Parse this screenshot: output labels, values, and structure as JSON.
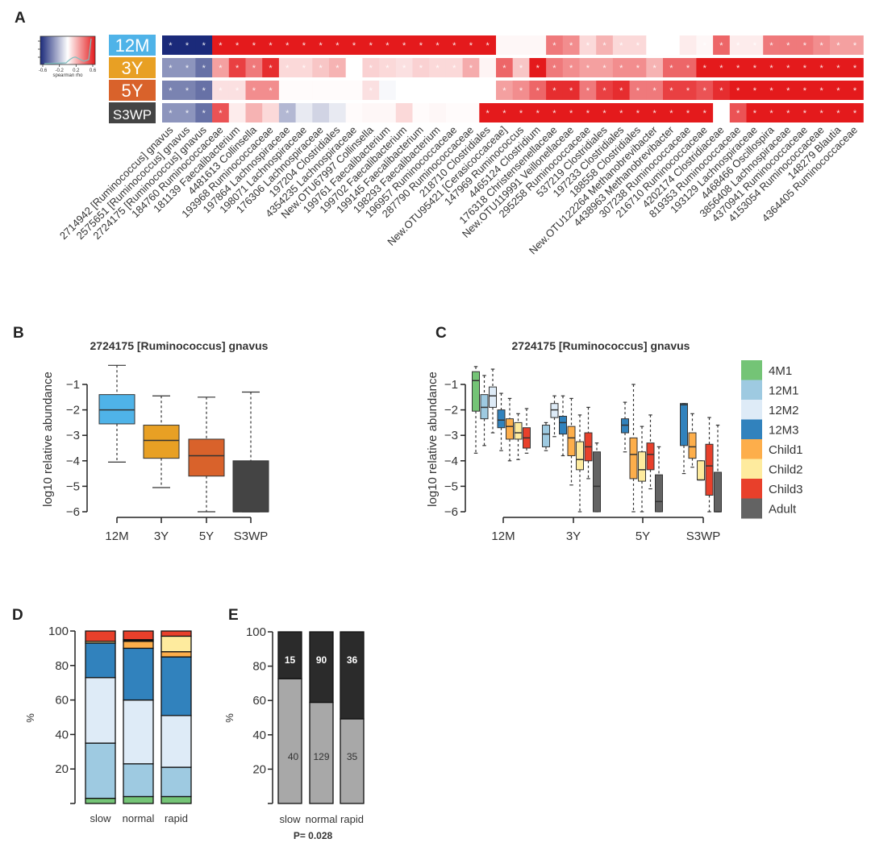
{
  "panels": {
    "A": "A",
    "B": "B",
    "C": "C",
    "D": "D",
    "E": "E"
  },
  "chart_data": [
    {
      "id": "A",
      "type": "heatmap",
      "colorbar": {
        "label": "spearman rho",
        "ticks": [
          "-0.6",
          "-0.2",
          "0.2",
          "0.6"
        ],
        "range": [
          -0.6,
          0.6
        ],
        "low_color": "#1b2a7a",
        "mid_color": "#ffffff",
        "high_color": "#e41a1c"
      },
      "rows": [
        {
          "label": "12M",
          "color": "#4fb3e8"
        },
        {
          "label": "3Y",
          "color": "#e8a024"
        },
        {
          "label": "5Y",
          "color": "#d9622b"
        },
        {
          "label": "S3WP",
          "color": "#444444"
        }
      ],
      "columns": [
        "2714942_[Ruminococcus]_gnavus",
        "2575651_[Ruminococcus]_gnavus",
        "2724175_[Ruminococcus]_gnavus",
        "184760_Ruminococcaceae",
        "181139_Faecalibacterium",
        "4481613_Collinsella",
        "193968_Ruminococcaceae",
        "197864_Lachnospiraceae",
        "198071_Lachnospiraceae",
        "176306_Lachnospiraceae",
        "197204_Clostridiales",
        "4354235_Lachnospiraceae",
        "New.OTU67997_Collinsella",
        "199761_Faecalibacterium",
        "199702_Faecalibacterium",
        "199145_Faecalibacterium",
        "198293_Faecalibacterium",
        "196957_Ruminococcaceae",
        "287790_Ruminococcaceae",
        "218710_Clostridiales",
        "New.OTU95421_[Cerasicoccaceae]",
        "147969_Ruminococcus",
        "4465124_Clostridium",
        "176318_Christensenellaceae",
        "New.OTU119991_Veillonellaceae",
        "295258_Ruminococcaceae",
        "537219_Clostridiales",
        "197233_Clostridiales",
        "188558_Clostridiales",
        "New.OTU122264_Methanobrevibacter",
        "4438963_Methanobrevibacter",
        "307238_Ruminococcaceae",
        "216710_Ruminococcaceae",
        "4202174_Clostridiaceae",
        "819353_Ruminococcaceae",
        "193129_Lachnospiraceae",
        "4468466_Oscillospira",
        "3856408_Lachnospiraceae",
        "4370941_Ruminococcaceae",
        "4153054_Ruminococcaceae",
        "148279_Blautia",
        "4364405_Ruminococcaceae"
      ],
      "values": [
        [
          -0.6,
          -0.6,
          -0.6,
          0.6,
          0.6,
          0.6,
          0.6,
          0.6,
          0.6,
          0.6,
          0.6,
          0.6,
          0.6,
          0.6,
          0.6,
          0.6,
          0.6,
          0.6,
          0.6,
          0.6,
          0.02,
          0.02,
          0.02,
          0.35,
          0.3,
          0.1,
          0.2,
          0.1,
          0.1,
          0,
          0,
          0.05,
          0.02,
          0.4,
          0.05,
          0.05,
          0.35,
          0.35,
          0.35,
          0.3,
          0.25,
          0.25
        ],
        [
          -0.3,
          -0.3,
          -0.4,
          0.25,
          0.5,
          0.35,
          0.55,
          0.1,
          0.1,
          0.15,
          0.2,
          0,
          0.12,
          0.1,
          0.08,
          0.12,
          0.1,
          0.1,
          0.22,
          0.03,
          0.4,
          0.15,
          0.6,
          0.35,
          0.3,
          0.25,
          0.25,
          0.3,
          0.3,
          0.2,
          0.4,
          0.4,
          0.6,
          0.6,
          0.6,
          0.6,
          0.6,
          0.6,
          0.6,
          0.6,
          0.6,
          0.6
        ],
        [
          -0.35,
          -0.35,
          -0.4,
          0.08,
          0.08,
          0.3,
          0.3,
          0.01,
          0.01,
          0.01,
          0.01,
          0.01,
          0.08,
          -0.02,
          0,
          0,
          0,
          0,
          0,
          0,
          0.25,
          0.3,
          0.4,
          0.55,
          0.55,
          0.35,
          0.5,
          0.55,
          0.35,
          0.35,
          0.5,
          0.5,
          0.45,
          0.55,
          0.6,
          0.6,
          0.6,
          0.6,
          0.6,
          0.6,
          0.6,
          0.6
        ],
        [
          -0.3,
          -0.3,
          -0.4,
          0.45,
          0.05,
          0.2,
          0.1,
          -0.2,
          -0.06,
          -0.12,
          -0.06,
          0.01,
          0.02,
          0.02,
          0.1,
          0.01,
          0.02,
          0.01,
          0.01,
          0.6,
          0.6,
          0.6,
          0.6,
          0.6,
          0.6,
          0.6,
          0.6,
          0.6,
          0.6,
          0.6,
          0.6,
          0.6,
          0.6,
          0,
          0.45,
          0.6,
          0.6,
          0.6,
          0.6,
          0.6,
          0.6,
          0.6
        ]
      ],
      "significant": [
        [
          1,
          1,
          1,
          1,
          1,
          1,
          1,
          1,
          1,
          1,
          1,
          1,
          1,
          1,
          1,
          1,
          1,
          1,
          1,
          1,
          0,
          0,
          0,
          1,
          1,
          1,
          1,
          1,
          1,
          0,
          0,
          0,
          1,
          1,
          1,
          1,
          1,
          1,
          1,
          1,
          1,
          1
        ],
        [
          1,
          1,
          1,
          1,
          1,
          1,
          1,
          1,
          1,
          1,
          1,
          0,
          1,
          1,
          1,
          1,
          1,
          1,
          1,
          0,
          1,
          1,
          1,
          1,
          1,
          1,
          1,
          1,
          1,
          1,
          1,
          1,
          1,
          1,
          1,
          1,
          1,
          1,
          1,
          1,
          1,
          1
        ],
        [
          1,
          1,
          1,
          1,
          1,
          1,
          1,
          0,
          0,
          0,
          0,
          0,
          1,
          0,
          0,
          0,
          0,
          0,
          0,
          0,
          1,
          1,
          1,
          1,
          1,
          1,
          1,
          1,
          1,
          1,
          1,
          1,
          1,
          1,
          1,
          1,
          1,
          1,
          1,
          1,
          1,
          1
        ],
        [
          1,
          1,
          1,
          1,
          0,
          0,
          0,
          1,
          0,
          0,
          0,
          0,
          0,
          0,
          0,
          0,
          0,
          0,
          0,
          1,
          1,
          1,
          1,
          1,
          1,
          1,
          1,
          1,
          1,
          1,
          1,
          1,
          1,
          0,
          1,
          1,
          1,
          1,
          1,
          1,
          1,
          1
        ]
      ]
    },
    {
      "id": "B",
      "type": "box",
      "title": "2724175 [Ruminococcus] gnavus",
      "xlabel": "",
      "ylabel": "log10 relative abundance",
      "ylim": [
        -6,
        -1
      ],
      "yticks": [
        "-1",
        "-2",
        "-3",
        "-4",
        "-5",
        "-6"
      ],
      "categories": [
        "12M",
        "3Y",
        "5Y",
        "S3WP"
      ],
      "colors": [
        "#4fb3e8",
        "#e8a024",
        "#d9622b",
        "#444444"
      ],
      "boxes": [
        {
          "whisker_low": -4.05,
          "q1": -2.55,
          "median": -2.0,
          "q3": -1.4,
          "whisker_high": -0.25
        },
        {
          "whisker_low": -5.05,
          "q1": -3.9,
          "median": -3.2,
          "q3": -2.6,
          "whisker_high": -1.45
        },
        {
          "whisker_low": -6.0,
          "q1": -4.6,
          "median": -3.8,
          "q3": -3.15,
          "whisker_high": -1.5
        },
        {
          "whisker_low": -6.0,
          "q1": -6.0,
          "median": -6.0,
          "q3": -4.0,
          "whisker_high": -1.3
        }
      ]
    },
    {
      "id": "C",
      "type": "box",
      "title": "2724175 [Ruminococcus] gnavus",
      "ylabel": "log10 relative abundance",
      "ylim": [
        -6,
        -1
      ],
      "yticks": [
        "-1",
        "-2",
        "-3",
        "-4",
        "-5",
        "-6"
      ],
      "categories": [
        "12M",
        "3Y",
        "5Y",
        "S3WP"
      ],
      "legend": [
        {
          "label": "4M1",
          "color": "#74c476"
        },
        {
          "label": "12M1",
          "color": "#9ecae1"
        },
        {
          "label": "12M2",
          "color": "#deebf7"
        },
        {
          "label": "12M3",
          "color": "#3182bd"
        },
        {
          "label": "Child1",
          "color": "#fdae4b"
        },
        {
          "label": "Child2",
          "color": "#feeb9e"
        },
        {
          "label": "Child3",
          "color": "#e8402b"
        },
        {
          "label": "Adult",
          "color": "#636363"
        }
      ],
      "groups": [
        {
          "category": "12M",
          "boxes": [
            {
              "series": "4M1",
              "whisker_low": -3.7,
              "q1": -2.05,
              "median": -0.85,
              "q3": -0.5,
              "whisker_high": -0.3
            },
            {
              "series": "12M1",
              "whisker_low": -3.4,
              "q1": -2.35,
              "median": -1.9,
              "q3": -1.4,
              "whisker_high": -0.65
            },
            {
              "series": "12M2",
              "whisker_low": -2.9,
              "q1": -1.9,
              "median": -1.45,
              "q3": -1.1,
              "whisker_high": -0.4
            },
            {
              "series": "12M3",
              "whisker_low": -3.6,
              "q1": -2.7,
              "median": -2.4,
              "q3": -2.0,
              "whisker_high": -1.35
            },
            {
              "series": "Child1",
              "whisker_low": -4.0,
              "q1": -3.15,
              "median": -2.65,
              "q3": -2.35,
              "whisker_high": -1.55
            },
            {
              "series": "Child2",
              "whisker_low": -3.95,
              "q1": -3.15,
              "median": -2.9,
              "q3": -2.5,
              "whisker_high": -2.15
            },
            {
              "series": "Child3",
              "whisker_low": -3.7,
              "q1": -3.5,
              "median": -3.1,
              "q3": -2.7,
              "whisker_high": -1.95
            }
          ]
        },
        {
          "category": "3Y",
          "boxes": [
            {
              "series": "12M1",
              "whisker_low": -3.6,
              "q1": -3.45,
              "median": -2.95,
              "q3": -2.6,
              "whisker_high": -2.5
            },
            {
              "series": "12M2",
              "whisker_low": -3.05,
              "q1": -2.3,
              "median": -2.0,
              "q3": -1.75,
              "whisker_high": -1.45
            },
            {
              "series": "12M3",
              "whisker_low": -3.8,
              "q1": -2.95,
              "median": -2.5,
              "q3": -2.25,
              "whisker_high": -1.45
            },
            {
              "series": "Child1",
              "whisker_low": -4.95,
              "q1": -3.8,
              "median": -3.1,
              "q3": -2.65,
              "whisker_high": -1.55
            },
            {
              "series": "Child2",
              "whisker_low": -6.0,
              "q1": -4.35,
              "median": -3.95,
              "q3": -3.25,
              "whisker_high": -2.2
            },
            {
              "series": "Child3",
              "whisker_low": -4.7,
              "q1": -4.0,
              "median": -3.45,
              "q3": -2.9,
              "whisker_high": -1.9
            },
            {
              "series": "Adult",
              "whisker_low": -6.0,
              "q1": -6.0,
              "median": -5.0,
              "q3": -3.65,
              "whisker_high": -3.3
            }
          ]
        },
        {
          "category": "5Y",
          "boxes": [
            {
              "series": "12M3",
              "whisker_low": -3.65,
              "q1": -2.9,
              "median": -2.6,
              "q3": -2.35,
              "whisker_high": -1.7
            },
            {
              "series": "Child1",
              "whisker_low": -6.0,
              "q1": -4.7,
              "median": -3.75,
              "q3": -3.1,
              "whisker_high": -1.0
            },
            {
              "series": "Child2",
              "whisker_low": -6.0,
              "q1": -4.8,
              "median": -4.35,
              "q3": -3.65,
              "whisker_high": -2.65
            },
            {
              "series": "Child3",
              "whisker_low": -5.1,
              "q1": -4.35,
              "median": -3.75,
              "q3": -3.3,
              "whisker_high": -2.2
            },
            {
              "series": "Adult",
              "whisker_low": -6.0,
              "q1": -6.0,
              "median": -5.6,
              "q3": -4.55,
              "whisker_high": -3.45
            }
          ]
        },
        {
          "category": "S3WP",
          "boxes": [
            {
              "series": "12M3",
              "whisker_low": -4.5,
              "q1": -3.4,
              "median": -1.8,
              "q3": -1.75,
              "whisker_high": -1.75
            },
            {
              "series": "Child1",
              "whisker_low": -4.25,
              "q1": -3.9,
              "median": -3.45,
              "q3": -2.9,
              "whisker_high": -2.15
            },
            {
              "series": "Child2",
              "whisker_low": -4.75,
              "q1": -4.75,
              "median": -4.75,
              "q3": -4.0,
              "whisker_high": -4.0
            },
            {
              "series": "Child3",
              "whisker_low": -6.0,
              "q1": -5.35,
              "median": -4.2,
              "q3": -3.35,
              "whisker_high": -2.3
            },
            {
              "series": "Adult",
              "whisker_low": -6.0,
              "q1": -6.0,
              "median": -6.0,
              "q3": -4.45,
              "whisker_high": -2.6
            }
          ]
        }
      ]
    },
    {
      "id": "D",
      "type": "bar",
      "stacked": true,
      "ylabel": "%",
      "ylim": [
        0,
        100
      ],
      "yticks": [
        "20",
        "40",
        "60",
        "80",
        "100"
      ],
      "categories": [
        "slow",
        "normal",
        "rapid"
      ],
      "series": [
        {
          "name": "4M1",
          "color": "#74c476",
          "values": [
            3,
            4,
            4
          ]
        },
        {
          "name": "12M1",
          "color": "#9ecae1",
          "values": [
            32,
            19,
            17
          ]
        },
        {
          "name": "12M2",
          "color": "#deebf7",
          "values": [
            38,
            37,
            30
          ]
        },
        {
          "name": "12M3",
          "color": "#3182bd",
          "values": [
            20,
            30,
            34
          ]
        },
        {
          "name": "Child1",
          "color": "#fdae4b",
          "values": [
            0,
            4,
            3
          ]
        },
        {
          "name": "Child2",
          "color": "#feeb9e",
          "values": [
            1,
            0,
            9
          ]
        },
        {
          "name": "Adult",
          "color": "#111111",
          "values": [
            0,
            1,
            0
          ]
        },
        {
          "name": "Child3",
          "color": "#e8402b",
          "values": [
            6,
            5,
            3
          ]
        }
      ]
    },
    {
      "id": "E",
      "type": "bar",
      "stacked": true,
      "ylabel": "%",
      "ylim": [
        0,
        100
      ],
      "yticks": [
        "20",
        "40",
        "60",
        "80",
        "100"
      ],
      "categories": [
        "slow",
        "normal",
        "rapid"
      ],
      "series": [
        {
          "name": "lower",
          "color": "#a8a8a8",
          "counts": [
            40,
            129,
            35
          ],
          "values": [
            72.7,
            58.9,
            49.3
          ],
          "label_color": "#333333"
        },
        {
          "name": "upper",
          "color": "#2b2b2b",
          "counts": [
            15,
            90,
            36
          ],
          "values": [
            27.3,
            41.1,
            50.7
          ],
          "label_color": "#ffffff"
        }
      ],
      "annotation": "P= 0.028"
    }
  ]
}
